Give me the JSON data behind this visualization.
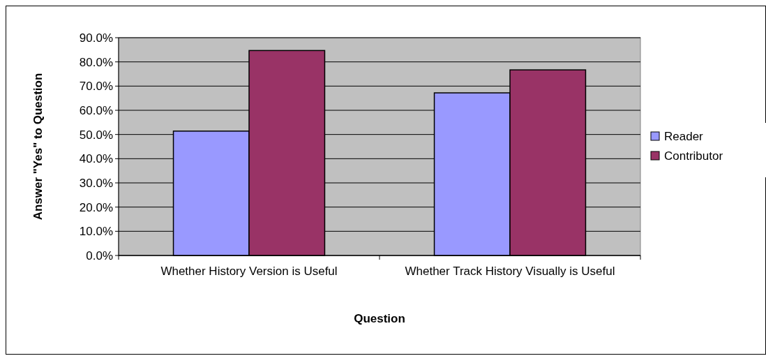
{
  "chart_data": {
    "type": "bar",
    "xlabel": "Question",
    "ylabel": "Answer \"Yes\" to Question",
    "categories": [
      "Whether History Version is Useful",
      "Whether Track History Visually is Useful"
    ],
    "series": [
      {
        "name": "Reader",
        "color": "#9999ff",
        "values": [
          51.4,
          67.2
        ]
      },
      {
        "name": "Contributor",
        "color": "#993366",
        "values": [
          84.7,
          76.7
        ]
      }
    ],
    "ylim": [
      0,
      90
    ],
    "yticks": [
      {
        "value": 0,
        "label": "0.0%"
      },
      {
        "value": 10,
        "label": "10.0%"
      },
      {
        "value": 20,
        "label": "20.0%"
      },
      {
        "value": 30,
        "label": "30.0%"
      },
      {
        "value": 40,
        "label": "40.0%"
      },
      {
        "value": 50,
        "label": "50.0%"
      },
      {
        "value": 60,
        "label": "60.0%"
      },
      {
        "value": 70,
        "label": "70.0%"
      },
      {
        "value": 80,
        "label": "80.0%"
      },
      {
        "value": 90,
        "label": "90.0%"
      }
    ],
    "grid": "y",
    "legend": "right"
  }
}
